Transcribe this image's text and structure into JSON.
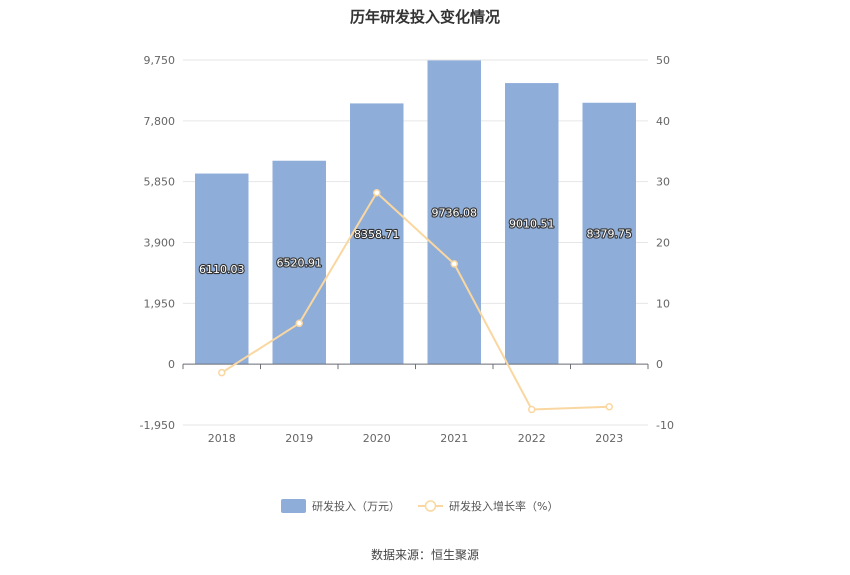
{
  "chart_data": {
    "type": "bar",
    "title": "历年研发投入变化情况",
    "categories": [
      "2018",
      "2019",
      "2020",
      "2021",
      "2022",
      "2023"
    ],
    "series": [
      {
        "name": "研发投入（万元）",
        "type": "bar",
        "axis": "left",
        "color": "#8eadd9",
        "values": [
          6110.03,
          6520.91,
          8358.71,
          9736.08,
          9010.51,
          8379.75
        ],
        "labels": [
          "6110.03",
          "6520.91",
          "8358.71",
          "9736.08",
          "9010.51",
          "8379.75"
        ]
      },
      {
        "name": "研发投入增长率（%）",
        "type": "line",
        "axis": "right",
        "color": "#fad7a0",
        "values": [
          -1.4,
          6.72,
          28.18,
          16.48,
          -7.45,
          -7.0
        ]
      }
    ],
    "y_left": {
      "min": -1950,
      "max": 9750,
      "ticks": [
        -1950,
        0,
        1950,
        3900,
        5850,
        7800,
        9750
      ],
      "tick_labels": [
        "-1,950",
        "0",
        "1,950",
        "3,900",
        "5,850",
        "7,800",
        "9,750"
      ]
    },
    "y_right": {
      "min": -10,
      "max": 50,
      "ticks": [
        -10,
        0,
        10,
        20,
        30,
        40,
        50
      ],
      "tick_labels": [
        "-10",
        "0",
        "10",
        "20",
        "30",
        "40",
        "50"
      ]
    },
    "grid": true,
    "legend_position": "bottom",
    "source": "数据来源：恒生聚源"
  }
}
